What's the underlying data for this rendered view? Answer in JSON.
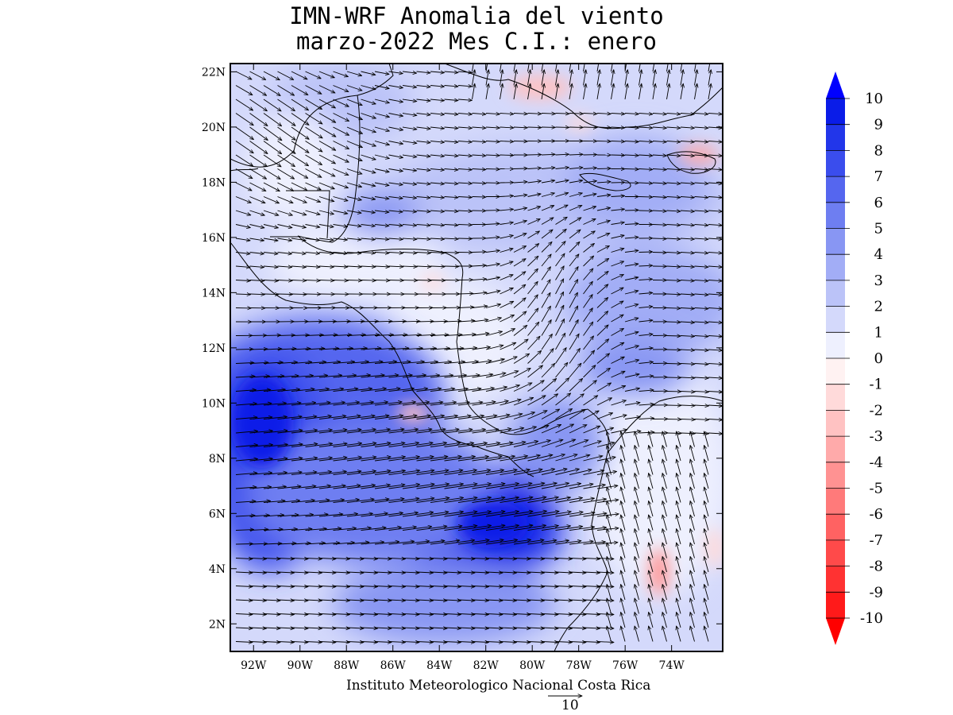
{
  "header": {
    "title_line1": "IMN-WRF Anomalia del viento",
    "title_line2": "marzo-2022 Mes C.I.: enero"
  },
  "map": {
    "lat_labels": [
      "22N",
      "20N",
      "18N",
      "16N",
      "14N",
      "12N",
      "10N",
      "8N",
      "6N",
      "4N",
      "2N"
    ],
    "lat_values": [
      22,
      20,
      18,
      16,
      14,
      12,
      10,
      8,
      6,
      4,
      2
    ],
    "lon_labels": [
      "92W",
      "90W",
      "88W",
      "86W",
      "84W",
      "82W",
      "80W",
      "78W",
      "76W",
      "74W"
    ],
    "lon_values": [
      -92,
      -90,
      -88,
      -86,
      -84,
      -82,
      -80,
      -78,
      -76,
      -74
    ],
    "extent": {
      "lon_min": -93.0,
      "lon_max": -71.8,
      "lat_min": 1.0,
      "lat_max": 22.3
    }
  },
  "colorbar": {
    "labels": [
      "10",
      "9",
      "8",
      "7",
      "6",
      "5",
      "4",
      "3",
      "2",
      "1",
      "0",
      "-1",
      "-2",
      "-3",
      "-4",
      "-5",
      "-6",
      "-7",
      "-8",
      "-9",
      "-10"
    ],
    "colors_top_to_bottom": [
      "#0a1ce8",
      "#2236ea",
      "#3a4ded",
      "#5566ef",
      "#6e7ef1",
      "#8896f3",
      "#a2adf6",
      "#bbc3f8",
      "#d4d9fb",
      "#eef0fe",
      "#fff2f2",
      "#ffdada",
      "#ffc2c2",
      "#ffaaaa",
      "#ff9292",
      "#ff7a7a",
      "#ff6262",
      "#ff4a4a",
      "#ff3232",
      "#ff1a1a"
    ],
    "top_arrow_color": "#0000ff",
    "bottom_arrow_color": "#ff0000"
  },
  "footer": {
    "credit": "Instituto Meteorologico Nacional Costa Rica",
    "reference_vector_value": "10"
  }
}
